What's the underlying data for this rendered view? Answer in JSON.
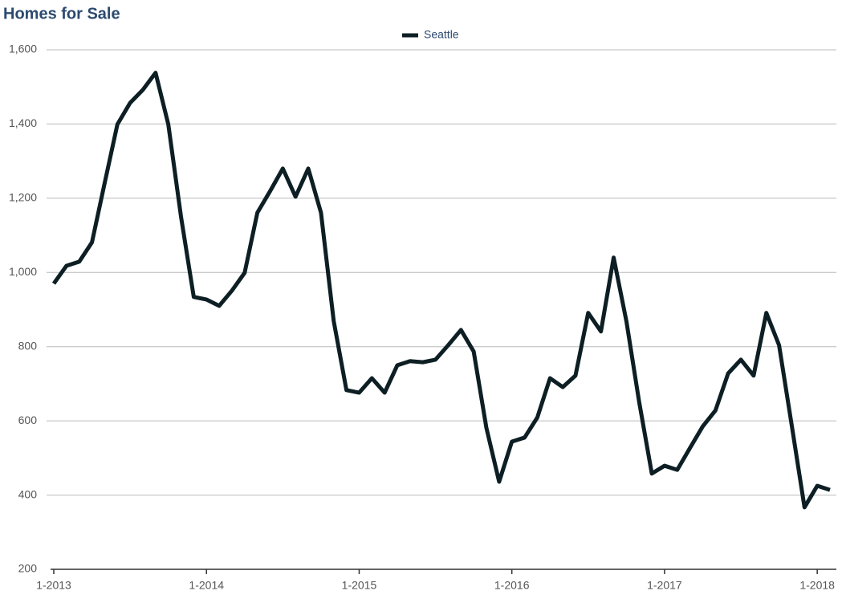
{
  "chart_data": {
    "type": "line",
    "title": "Homes for Sale",
    "x": [
      "2013-01",
      "2013-02",
      "2013-03",
      "2013-04",
      "2013-05",
      "2013-06",
      "2013-07",
      "2013-08",
      "2013-09",
      "2013-10",
      "2013-11",
      "2013-12",
      "2014-01",
      "2014-02",
      "2014-03",
      "2014-04",
      "2014-05",
      "2014-06",
      "2014-07",
      "2014-08",
      "2014-09",
      "2014-10",
      "2014-11",
      "2014-12",
      "2015-01",
      "2015-02",
      "2015-03",
      "2015-04",
      "2015-05",
      "2015-06",
      "2015-07",
      "2015-08",
      "2015-09",
      "2015-10",
      "2015-11",
      "2015-12",
      "2016-01",
      "2016-02",
      "2016-03",
      "2016-04",
      "2016-05",
      "2016-06",
      "2016-07",
      "2016-08",
      "2016-09",
      "2016-10",
      "2016-11",
      "2016-12",
      "2017-01",
      "2017-02",
      "2017-03",
      "2017-04",
      "2017-05",
      "2017-06",
      "2017-07",
      "2017-08",
      "2017-09",
      "2017-10",
      "2017-11",
      "2017-12",
      "2018-01",
      "2018-02"
    ],
    "series": [
      {
        "name": "Seattle",
        "color": "#0d1f24",
        "values": [
          970,
          1018,
          1029,
          1081,
          1241,
          1399,
          1457,
          1492,
          1538,
          1399,
          1150,
          934,
          927,
          910,
          951,
          999,
          1161,
          1219,
          1280,
          1204,
          1280,
          1161,
          869,
          683,
          676,
          715,
          676,
          750,
          761,
          758,
          765,
          804,
          845,
          787,
          581,
          436,
          544,
          555,
          609,
          715,
          691,
          722,
          891,
          841,
          1040,
          869,
          652,
          458,
          479,
          468,
          527,
          585,
          628,
          728,
          765,
          722,
          891,
          804,
          587,
          367,
          425,
          414
        ]
      }
    ],
    "xticks": [
      {
        "value": "2013-01",
        "label": "1-2013"
      },
      {
        "value": "2014-01",
        "label": "1-2014"
      },
      {
        "value": "2015-01",
        "label": "1-2015"
      },
      {
        "value": "2016-01",
        "label": "1-2016"
      },
      {
        "value": "2017-01",
        "label": "1-2017"
      },
      {
        "value": "2018-01",
        "label": "1-2018"
      }
    ],
    "ylim": [
      200,
      1600
    ],
    "yticks": [
      200,
      400,
      600,
      800,
      {
        "value": 1000,
        "label": "1,000"
      },
      {
        "value": 1200,
        "label": "1,200"
      },
      {
        "value": 1400,
        "label": "1,400"
      },
      {
        "value": 1600,
        "label": "1,600"
      }
    ],
    "grid": true,
    "legend": "top"
  }
}
